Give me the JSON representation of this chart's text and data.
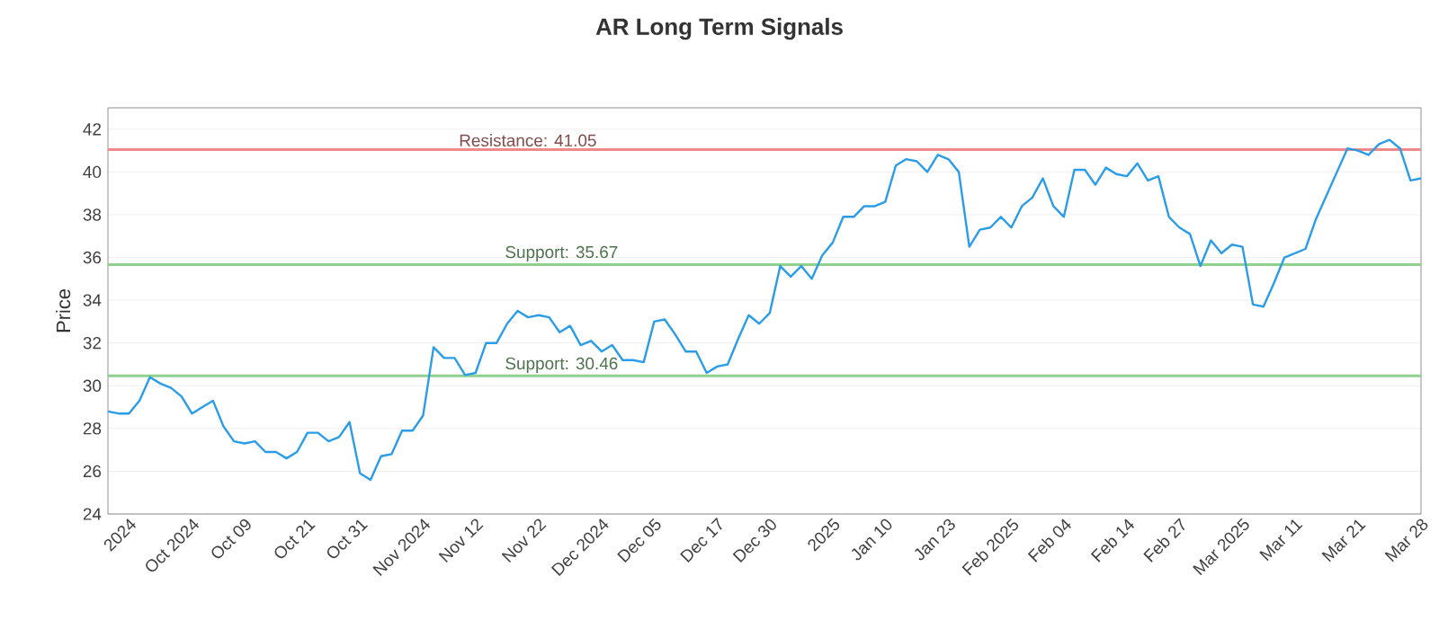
{
  "chart_data": {
    "type": "line",
    "title": "AR Long Term Signals",
    "ylabel": "Price",
    "categories": [
      null,
      null,
      "2024",
      null,
      null,
      null,
      null,
      null,
      "Oct 2024",
      null,
      null,
      null,
      null,
      "Oct 09",
      null,
      null,
      null,
      null,
      null,
      "Oct 21",
      null,
      null,
      null,
      null,
      "Oct 31",
      null,
      null,
      null,
      null,
      null,
      "Nov 2024",
      null,
      null,
      null,
      null,
      "Nov 12",
      null,
      null,
      null,
      null,
      null,
      "Nov 22",
      null,
      null,
      null,
      null,
      null,
      "Dec 2024",
      null,
      null,
      null,
      null,
      "Dec 05",
      null,
      null,
      null,
      null,
      null,
      "Dec 17",
      null,
      null,
      null,
      null,
      "Dec 30",
      null,
      null,
      null,
      null,
      null,
      "2025",
      null,
      null,
      null,
      null,
      "Jan 10",
      null,
      null,
      null,
      null,
      null,
      "Jan 23",
      null,
      null,
      null,
      null,
      null,
      "Feb 2025",
      null,
      null,
      null,
      null,
      "Feb 04",
      null,
      null,
      null,
      null,
      null,
      "Feb 14",
      null,
      null,
      null,
      null,
      "Feb 27",
      null,
      null,
      null,
      null,
      null,
      "Mar 2025",
      null,
      null,
      null,
      null,
      "Mar 11",
      null,
      null,
      null,
      null,
      null,
      "Mar 21",
      null,
      null,
      null,
      null,
      null,
      "Mar 28"
    ],
    "series": [
      {
        "color": "#2b9de8",
        "values": [
          28.8,
          28.7,
          28.7,
          29.3,
          30.4,
          30.1,
          29.9,
          29.5,
          28.7,
          29.0,
          29.3,
          28.1,
          27.4,
          27.3,
          27.4,
          26.9,
          26.9,
          26.6,
          26.9,
          27.8,
          27.8,
          27.4,
          27.6,
          28.3,
          25.9,
          25.6,
          26.7,
          26.8,
          27.9,
          27.9,
          28.6,
          31.8,
          31.3,
          31.3,
          30.5,
          30.6,
          32.0,
          32.0,
          32.9,
          33.5,
          33.2,
          33.3,
          33.2,
          32.5,
          32.8,
          31.9,
          32.1,
          31.6,
          31.9,
          31.2,
          31.2,
          31.1,
          33.0,
          33.1,
          32.4,
          31.6,
          31.6,
          30.6,
          30.9,
          31.0,
          32.2,
          33.3,
          32.9,
          33.4,
          35.6,
          35.1,
          35.6,
          35.0,
          36.1,
          36.7,
          37.9,
          37.9,
          38.4,
          38.4,
          38.6,
          40.3,
          40.6,
          40.5,
          40.0,
          40.8,
          40.6,
          40.0,
          36.5,
          37.3,
          37.4,
          37.9,
          37.4,
          38.4,
          38.8,
          39.7,
          38.4,
          37.9,
          40.1,
          40.1,
          39.4,
          40.2,
          39.9,
          39.8,
          40.4,
          39.6,
          39.8,
          37.9,
          37.4,
          37.1,
          35.6,
          36.8,
          36.2,
          36.6,
          36.5,
          33.8,
          33.7,
          34.8,
          36.0,
          36.2,
          36.4,
          37.8,
          38.9,
          40.0,
          41.1,
          41.0,
          40.8,
          41.3,
          41.5,
          41.1,
          39.6,
          39.7
        ]
      }
    ],
    "ylim": [
      24,
      43
    ],
    "yticks": [
      24,
      26,
      28,
      30,
      32,
      34,
      36,
      38,
      40,
      42
    ],
    "grid": "y",
    "marker": "none",
    "line_style": "solid",
    "ref_lines": [
      {
        "axis": "y",
        "value": 41.05,
        "label": "Resistance: 41.05",
        "color": "#f08a8a"
      },
      {
        "axis": "y",
        "value": 35.67,
        "label": "Support: 35.67",
        "color": "#8fd08f"
      },
      {
        "axis": "y",
        "value": 30.46,
        "label": "Support: 30.46",
        "color": "#8fd08f"
      }
    ]
  }
}
